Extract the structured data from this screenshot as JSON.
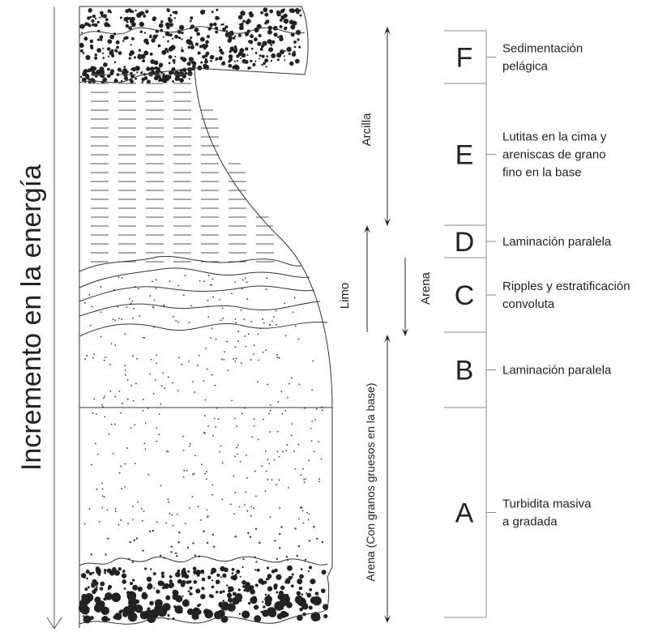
{
  "axis_label": "Incremento en la energía",
  "grain_labels": [
    "Arcilla",
    "Limo",
    "Arena",
    "Arena (Con granos gruesos en la base)"
  ],
  "divisions": [
    {
      "letter": "F",
      "description": [
        "Sedimentación",
        "pelágica"
      ]
    },
    {
      "letter": "E",
      "description": [
        "Lutitas en la cima y",
        "areniscas de grano",
        " fino en la base"
      ]
    },
    {
      "letter": "D",
      "description": [
        "Laminación paralela"
      ]
    },
    {
      "letter": "C",
      "description": [
        "Ripples y estratificación",
        "convoluta"
      ]
    },
    {
      "letter": "B",
      "description": [
        "Laminación paralela"
      ]
    },
    {
      "letter": "A",
      "description": [
        "Turbidita masiva",
        "a gradada"
      ]
    }
  ]
}
